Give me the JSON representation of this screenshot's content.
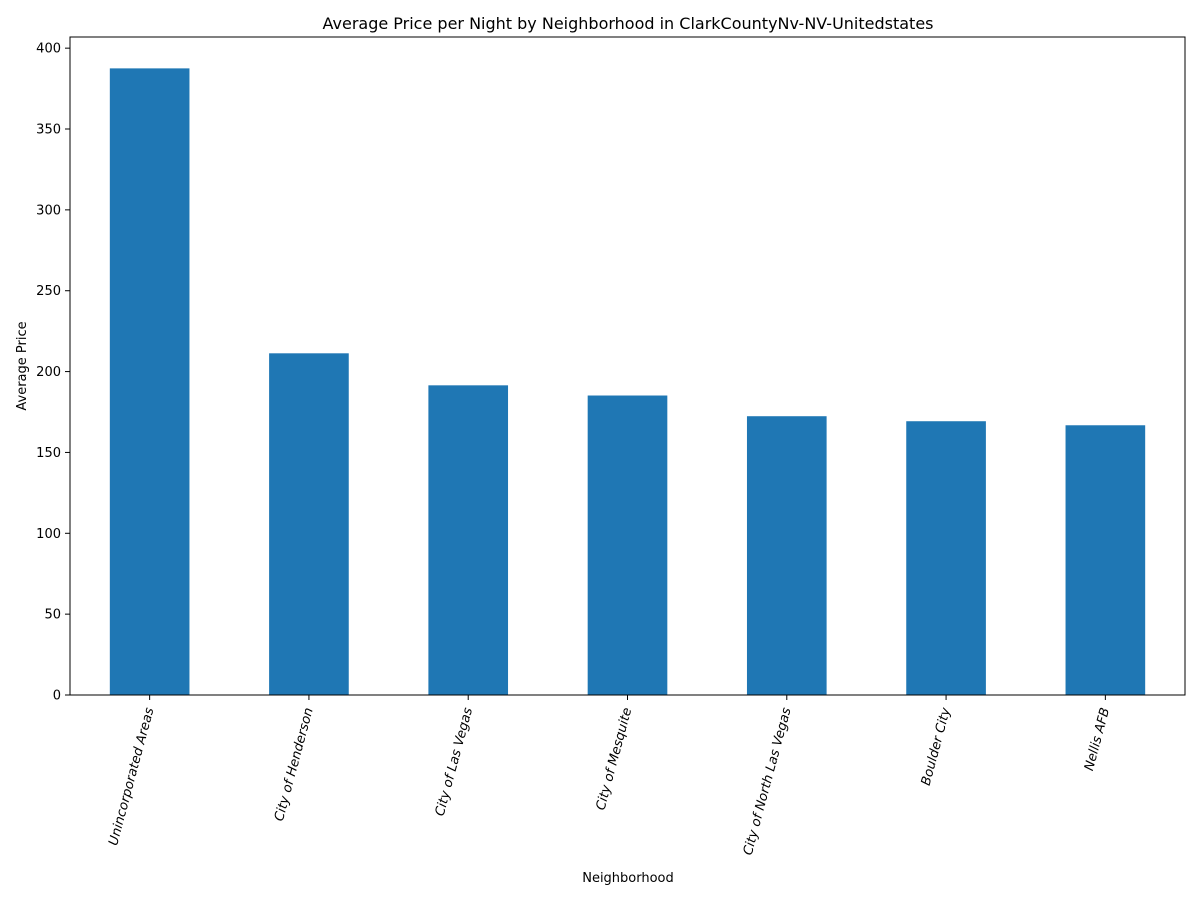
{
  "chart_data": {
    "type": "bar",
    "title": "Average Price per Night by Neighborhood in ClarkCountyNv-NV-Unitedstates",
    "xlabel": "Neighborhood",
    "ylabel": "Average Price",
    "categories": [
      "Unincorporated Areas",
      "City of Henderson",
      "City of Las Vegas",
      "City of Mesquite",
      "City of North Las Vegas",
      "Boulder City",
      "Nellis AFB"
    ],
    "values": [
      387.5,
      211.3,
      191.5,
      185.2,
      172.4,
      169.3,
      166.8
    ],
    "ylim": [
      0,
      406.9
    ],
    "yticks": [
      0,
      50,
      100,
      150,
      200,
      250,
      300,
      350,
      400
    ],
    "bar_color": "#1f77b4",
    "grid": false,
    "legend": "none"
  }
}
